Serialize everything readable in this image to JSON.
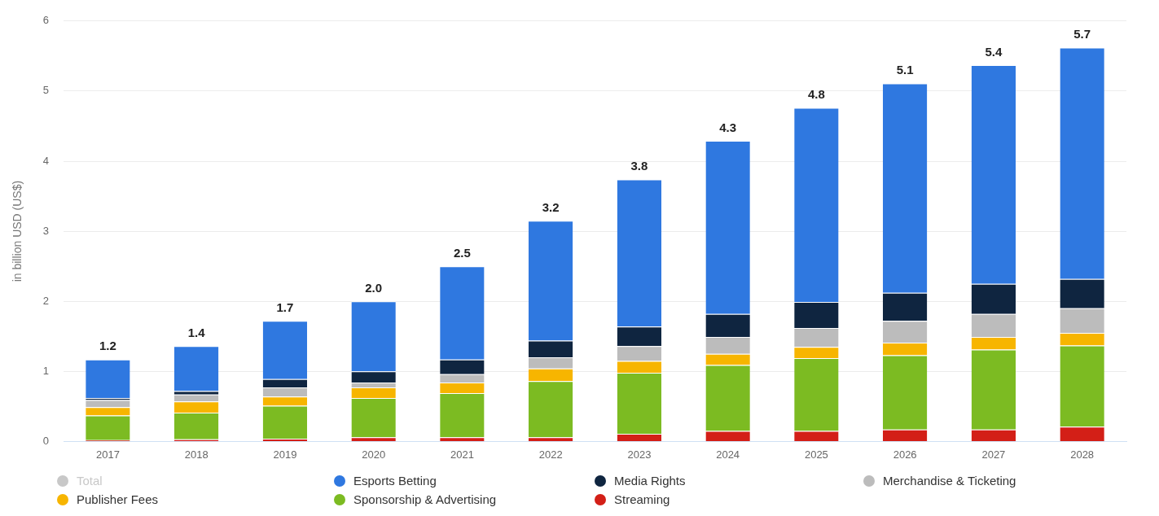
{
  "chart_data": {
    "type": "bar",
    "ylabel": "in billion USD (US$)",
    "stacked": true,
    "grid": "y",
    "legend": "bottom",
    "categories": [
      "2017",
      "2018",
      "2019",
      "2020",
      "2021",
      "2022",
      "2023",
      "2024",
      "2025",
      "2026",
      "2027",
      "2028"
    ],
    "series": [
      {
        "name": "Streaming",
        "color": "#d31f17",
        "values": [
          0.02,
          0.03,
          0.04,
          0.06,
          0.06,
          0.06,
          0.11,
          0.15,
          0.15,
          0.17,
          0.17,
          0.21
        ]
      },
      {
        "name": "Sponsorship & Advertising",
        "color": "#7cbb22",
        "values": [
          0.35,
          0.38,
          0.47,
          0.56,
          0.63,
          0.8,
          0.87,
          0.94,
          1.04,
          1.06,
          1.14,
          1.16
        ]
      },
      {
        "name": "Publisher Fees",
        "color": "#f7b500",
        "values": [
          0.12,
          0.16,
          0.13,
          0.15,
          0.15,
          0.18,
          0.17,
          0.16,
          0.16,
          0.18,
          0.18,
          0.18
        ]
      },
      {
        "name": "Merchandise & Ticketing",
        "color": "#bcbcbc",
        "values": [
          0.1,
          0.1,
          0.13,
          0.07,
          0.12,
          0.16,
          0.21,
          0.24,
          0.27,
          0.31,
          0.33,
          0.35
        ]
      },
      {
        "name": "Media Rights",
        "color": "#0f2540",
        "values": [
          0.03,
          0.05,
          0.12,
          0.16,
          0.21,
          0.24,
          0.28,
          0.33,
          0.37,
          0.4,
          0.43,
          0.42
        ]
      },
      {
        "name": "Esports Betting",
        "color": "#2f78e0",
        "values": [
          0.55,
          0.64,
          0.83,
          1.0,
          1.33,
          1.71,
          2.1,
          2.47,
          2.77,
          2.99,
          3.12,
          3.3
        ]
      },
      {
        "name": "Total",
        "color": "#c8c8c8",
        "values": [
          null,
          null,
          null,
          null,
          null,
          null,
          null,
          null,
          null,
          null,
          null,
          null
        ]
      }
    ],
    "totals": [
      "1.2",
      "1.4",
      "1.7",
      "2.0",
      "2.5",
      "3.2",
      "3.8",
      "4.3",
      "4.8",
      "5.1",
      "5.4",
      "5.7"
    ],
    "ylim": [
      0,
      6
    ],
    "yticks": [
      0,
      1,
      2,
      3,
      4,
      5,
      6
    ]
  }
}
